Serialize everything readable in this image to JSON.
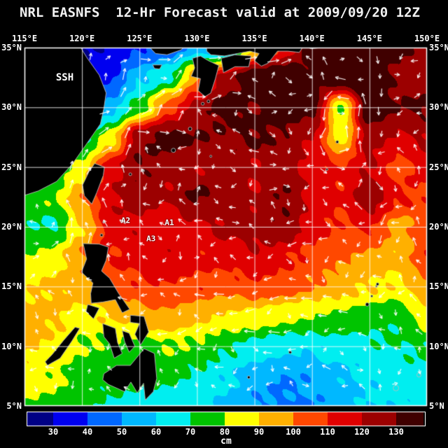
{
  "title": "NRL EASNFS  12-Hr Forecast valid at 2009/09/20 12Z",
  "units_label": "cm",
  "axes": {
    "lon_ticks": [
      115,
      120,
      125,
      130,
      135,
      140,
      145,
      150
    ],
    "lon_labels": [
      "115°E",
      "120°E",
      "125°E",
      "130°E",
      "135°E",
      "140°E",
      "145°E",
      "150°E"
    ],
    "lat_ticks": [
      35,
      30,
      25,
      20,
      15,
      10,
      5
    ],
    "lat_labels": [
      "35°N",
      "30°N",
      "25°N",
      "20°N",
      "15°N",
      "10°N",
      "5°N"
    ]
  },
  "colorbar": {
    "thresholds": [
      30,
      40,
      50,
      60,
      70,
      80,
      90,
      100,
      110,
      120,
      130
    ],
    "tick_labels": [
      "30",
      "40",
      "50",
      "60",
      "70",
      "80",
      "90",
      "100",
      "110",
      "120",
      "130"
    ],
    "colors": [
      "#000085",
      "#0000f0",
      "#0068ff",
      "#00b8ff",
      "#00eef0",
      "#00c400",
      "#ffff00",
      "#ffb000",
      "#ff4800",
      "#e00000",
      "#9c0000",
      "#400000"
    ]
  },
  "annotations": [
    {
      "label": "SSH",
      "lon": 118.5,
      "lat": 32.5,
      "kind": "field-label"
    },
    {
      "label": "A2",
      "lon": 123.8,
      "lat": 20.55,
      "kind": "station-label"
    },
    {
      "label": "A1",
      "lon": 127.6,
      "lat": 20.35,
      "kind": "station-label"
    },
    {
      "label": "A3",
      "lon": 126.0,
      "lat": 19.0,
      "kind": "station-label"
    }
  ],
  "chart_data": {
    "type": "heatmap",
    "variable": "Sea Surface Height (SSH)",
    "units": "cm",
    "title": "NRL EASNFS 12-Hr Forecast valid at 2009/09/20 12Z",
    "lon_range": [
      115,
      150
    ],
    "lat_range": [
      5,
      35
    ],
    "grid_lons": [
      115,
      117.5,
      120,
      122.5,
      125,
      127.5,
      130,
      132.5,
      135,
      137.5,
      140,
      142.5,
      145,
      147.5,
      150
    ],
    "grid_lats": [
      35,
      32.5,
      30,
      27.5,
      25,
      22.5,
      20,
      17.5,
      15,
      12.5,
      10,
      7.5,
      5
    ],
    "values": [
      [
        32,
        30,
        30,
        32,
        38,
        45,
        55,
        48,
        90,
        110,
        135,
        145,
        140,
        132,
        126
      ],
      [
        30,
        30,
        32,
        38,
        58,
        68,
        98,
        125,
        138,
        142,
        132,
        145,
        138,
        128,
        122
      ],
      [
        32,
        30,
        35,
        55,
        75,
        105,
        125,
        135,
        130,
        140,
        135,
        80,
        140,
        130,
        132
      ],
      [
        40,
        45,
        65,
        85,
        128,
        135,
        130,
        128,
        132,
        128,
        120,
        85,
        125,
        118,
        122
      ],
      [
        55,
        70,
        85,
        115,
        130,
        125,
        120,
        126,
        120,
        125,
        115,
        110,
        120,
        105,
        115
      ],
      [
        75,
        80,
        98,
        120,
        125,
        120,
        132,
        126,
        120,
        130,
        118,
        112,
        128,
        112,
        108
      ],
      [
        72,
        68,
        90,
        115,
        118,
        112,
        118,
        122,
        125,
        128,
        115,
        108,
        112,
        96,
        105
      ],
      [
        80,
        85,
        100,
        110,
        115,
        118,
        112,
        115,
        118,
        112,
        108,
        102,
        98,
        92,
        108
      ],
      [
        88,
        92,
        95,
        105,
        108,
        110,
        108,
        105,
        108,
        105,
        100,
        95,
        90,
        88,
        96
      ],
      [
        95,
        92,
        85,
        90,
        95,
        98,
        92,
        88,
        85,
        82,
        80,
        78,
        75,
        72,
        85
      ],
      [
        92,
        88,
        80,
        78,
        75,
        80,
        78,
        72,
        68,
        65,
        62,
        65,
        68,
        70,
        72
      ],
      [
        85,
        82,
        75,
        74,
        72,
        72,
        68,
        62,
        55,
        50,
        52,
        58,
        62,
        65,
        66
      ],
      [
        80,
        78,
        72,
        68,
        65,
        65,
        64,
        58,
        50,
        48,
        50,
        56,
        60,
        62,
        64
      ]
    ],
    "vectors": "white current arrows derived geostrophically from SSH gradient",
    "legend_position": "bottom horizontal colorbar"
  },
  "map": {
    "land": [
      {
        "name": "china",
        "points": [
          [
            114.9,
            35.3
          ],
          [
            119.7,
            35.3
          ],
          [
            120.4,
            34.2
          ],
          [
            121.5,
            32.7
          ],
          [
            122.1,
            31.2
          ],
          [
            121.9,
            29.9
          ],
          [
            121.6,
            28.6
          ],
          [
            120.3,
            26.8
          ],
          [
            119.2,
            25.3
          ],
          [
            117.8,
            23.8
          ],
          [
            116.2,
            23.0
          ],
          [
            114.9,
            22.6
          ]
        ]
      },
      {
        "name": "korea",
        "points": [
          [
            125.9,
            35.3
          ],
          [
            129.2,
            35.3
          ],
          [
            128.6,
            34.8
          ],
          [
            127.4,
            34.4
          ],
          [
            126.4,
            34.5
          ],
          [
            126.0,
            34.9
          ]
        ]
      },
      {
        "name": "jeju",
        "points": [
          [
            126.15,
            33.55
          ],
          [
            126.95,
            33.55
          ],
          [
            126.75,
            33.2
          ],
          [
            126.3,
            33.25
          ]
        ]
      },
      {
        "name": "kyushu",
        "points": [
          [
            129.6,
            34.1
          ],
          [
            130.3,
            34.3
          ],
          [
            131.0,
            33.9
          ],
          [
            131.9,
            33.5
          ],
          [
            131.6,
            32.4
          ],
          [
            131.2,
            31.2
          ],
          [
            130.7,
            30.9
          ],
          [
            130.1,
            31.4
          ],
          [
            130.3,
            32.4
          ],
          [
            129.5,
            32.6
          ],
          [
            129.8,
            33.3
          ]
        ]
      },
      {
        "name": "shikoku",
        "points": [
          [
            132.1,
            34.1
          ],
          [
            133.3,
            34.4
          ],
          [
            134.7,
            34.3
          ],
          [
            134.5,
            33.4
          ],
          [
            133.3,
            33.4
          ],
          [
            132.3,
            32.9
          ]
        ]
      },
      {
        "name": "honshu",
        "points": [
          [
            130.8,
            35.3
          ],
          [
            141.2,
            35.3
          ],
          [
            140.8,
            35.0
          ],
          [
            139.9,
            34.9
          ],
          [
            139.3,
            35.2
          ],
          [
            138.9,
            34.6
          ],
          [
            137.9,
            34.7
          ],
          [
            137.0,
            34.7
          ],
          [
            136.6,
            34.2
          ],
          [
            136.2,
            33.7
          ],
          [
            135.6,
            33.45
          ],
          [
            135.0,
            33.9
          ],
          [
            135.4,
            34.5
          ],
          [
            134.6,
            34.7
          ],
          [
            133.5,
            34.5
          ],
          [
            132.4,
            34.3
          ],
          [
            131.2,
            34.4
          ],
          [
            130.85,
            34.7
          ]
        ]
      },
      {
        "name": "taiwan",
        "points": [
          [
            121.1,
            25.3
          ],
          [
            121.95,
            25.0
          ],
          [
            121.85,
            24.3
          ],
          [
            121.3,
            22.9
          ],
          [
            120.85,
            21.9
          ],
          [
            120.2,
            22.6
          ],
          [
            120.05,
            23.5
          ],
          [
            120.6,
            24.6
          ]
        ]
      },
      {
        "name": "luzon",
        "points": [
          [
            120.1,
            18.6
          ],
          [
            121.5,
            18.55
          ],
          [
            122.3,
            18.3
          ],
          [
            122.1,
            17.2
          ],
          [
            121.7,
            16.3
          ],
          [
            122.4,
            15.7
          ],
          [
            123.2,
            14.4
          ],
          [
            124.15,
            13.1
          ],
          [
            123.5,
            12.8
          ],
          [
            122.9,
            13.9
          ],
          [
            121.8,
            13.7
          ],
          [
            120.8,
            13.6
          ],
          [
            120.75,
            14.4
          ],
          [
            120.95,
            15.3
          ],
          [
            119.95,
            16.2
          ],
          [
            120.4,
            17.3
          ]
        ]
      },
      {
        "name": "mindoro",
        "points": [
          [
            120.5,
            13.5
          ],
          [
            121.5,
            13.2
          ],
          [
            121.0,
            12.3
          ],
          [
            120.35,
            12.9
          ]
        ]
      },
      {
        "name": "samar-leyte",
        "points": [
          [
            124.2,
            12.6
          ],
          [
            125.4,
            12.5
          ],
          [
            125.8,
            11.2
          ],
          [
            125.1,
            10.1
          ],
          [
            124.6,
            11.0
          ],
          [
            125.0,
            11.9
          ],
          [
            124.2,
            12.0
          ]
        ]
      },
      {
        "name": "panay-negros",
        "points": [
          [
            121.8,
            11.9
          ],
          [
            122.9,
            11.5
          ],
          [
            123.1,
            10.3
          ],
          [
            123.5,
            9.4
          ],
          [
            122.8,
            9.0
          ],
          [
            122.4,
            10.2
          ],
          [
            121.9,
            10.8
          ]
        ]
      },
      {
        "name": "cebu-bohol",
        "points": [
          [
            123.5,
            11.3
          ],
          [
            124.1,
            11.1
          ],
          [
            124.6,
            10.0
          ],
          [
            124.1,
            9.5
          ],
          [
            123.7,
            10.4
          ]
        ]
      },
      {
        "name": "mindanao",
        "points": [
          [
            121.9,
            7.7
          ],
          [
            123.0,
            8.4
          ],
          [
            124.2,
            8.4
          ],
          [
            125.4,
            9.8
          ],
          [
            126.3,
            9.4
          ],
          [
            126.5,
            7.3
          ],
          [
            126.2,
            6.2
          ],
          [
            125.5,
            5.5
          ],
          [
            125.35,
            6.9
          ],
          [
            124.8,
            6.1
          ],
          [
            124.25,
            7.0
          ],
          [
            123.7,
            6.2
          ],
          [
            122.3,
            6.8
          ],
          [
            121.8,
            7.2
          ]
        ]
      },
      {
        "name": "palawan",
        "points": [
          [
            117.0,
            8.4
          ],
          [
            118.1,
            9.0
          ],
          [
            119.1,
            10.4
          ],
          [
            119.8,
            11.5
          ],
          [
            119.4,
            11.6
          ],
          [
            118.4,
            10.5
          ],
          [
            117.4,
            9.3
          ],
          [
            116.8,
            8.7
          ]
        ]
      }
    ],
    "islands": [
      {
        "name": "amami",
        "lon": 129.4,
        "lat": 28.2,
        "r": 2.5
      },
      {
        "name": "okinawa",
        "lon": 127.95,
        "lat": 26.4,
        "r": 3
      },
      {
        "name": "miyako",
        "lon": 125.3,
        "lat": 24.7,
        "r": 2
      },
      {
        "name": "ishigaki",
        "lon": 124.2,
        "lat": 24.4,
        "r": 2
      },
      {
        "name": "yakushima",
        "lon": 130.5,
        "lat": 30.3,
        "r": 2
      },
      {
        "name": "tanegashima",
        "lon": 131.0,
        "lat": 30.5,
        "r": 2
      },
      {
        "name": "daito",
        "lon": 131.2,
        "lat": 25.9,
        "r": 1.5
      },
      {
        "name": "bonin",
        "lon": 142.2,
        "lat": 27.1,
        "r": 2
      },
      {
        "name": "iwo",
        "lon": 141.3,
        "lat": 24.8,
        "r": 1.5
      },
      {
        "name": "batan",
        "lon": 121.9,
        "lat": 20.4,
        "r": 1.5
      },
      {
        "name": "babuyan",
        "lon": 121.7,
        "lat": 19.3,
        "r": 2
      },
      {
        "name": "saipan",
        "lon": 145.7,
        "lat": 15.2,
        "r": 2
      },
      {
        "name": "tinian",
        "lon": 145.6,
        "lat": 15.0,
        "r": 1.5
      },
      {
        "name": "rota",
        "lon": 145.2,
        "lat": 14.2,
        "r": 1.5
      },
      {
        "name": "guam",
        "lon": 144.8,
        "lat": 13.5,
        "r": 2.5
      },
      {
        "name": "yap",
        "lon": 138.1,
        "lat": 9.5,
        "r": 2
      },
      {
        "name": "palau",
        "lon": 134.5,
        "lat": 7.4,
        "r": 2
      },
      {
        "name": "atoll-ring-1",
        "lon": 147.3,
        "lat": 6.5,
        "r": 4,
        "ring": true
      },
      {
        "name": "atoll-ring-2",
        "lon": 149.3,
        "lat": 7.6,
        "r": 3,
        "ring": true
      }
    ]
  }
}
